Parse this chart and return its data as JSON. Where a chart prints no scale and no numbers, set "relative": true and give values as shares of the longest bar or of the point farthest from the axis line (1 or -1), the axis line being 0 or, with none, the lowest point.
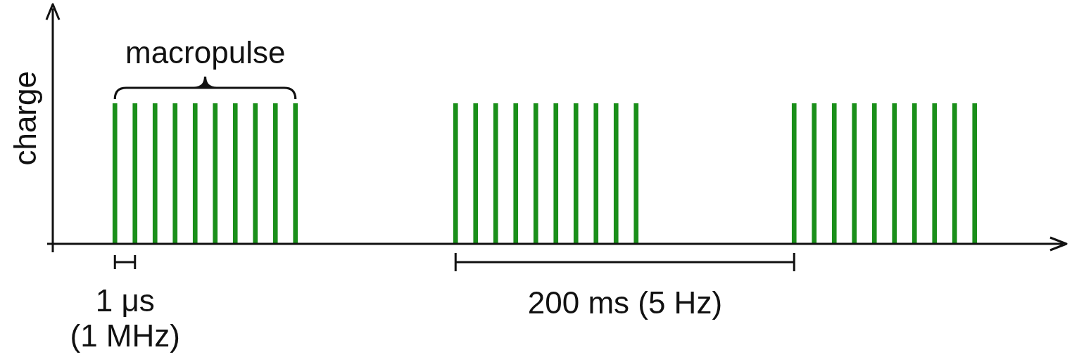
{
  "chart_data": [
    {
      "type": "bar",
      "relative": true,
      "ylabel": "charge",
      "color": "#1a8f1a",
      "categories": [
        null,
        null,
        null,
        null,
        null,
        null,
        null,
        null,
        null,
        null
      ],
      "values": [
        1,
        1,
        1,
        1,
        1,
        1,
        1,
        1,
        1,
        1
      ],
      "annotations": [
        "macropulse",
        "1 μs\n(1 MHz)"
      ]
    },
    {
      "type": "bar",
      "relative": true,
      "color": "#1a8f1a",
      "categories": [
        null,
        null,
        null,
        null,
        null,
        null,
        null,
        null,
        null,
        null
      ],
      "values": [
        1,
        1,
        1,
        1,
        1,
        1,
        1,
        1,
        1,
        1
      ],
      "annotations": [
        "200 ms (5 Hz)"
      ]
    },
    {
      "type": "bar",
      "relative": true,
      "color": "#1a8f1a",
      "categories": [
        null,
        null,
        null,
        null,
        null,
        null,
        null,
        null,
        null,
        null
      ],
      "values": [
        1,
        1,
        1,
        1,
        1,
        1,
        1,
        1,
        1,
        1
      ]
    }
  ]
}
